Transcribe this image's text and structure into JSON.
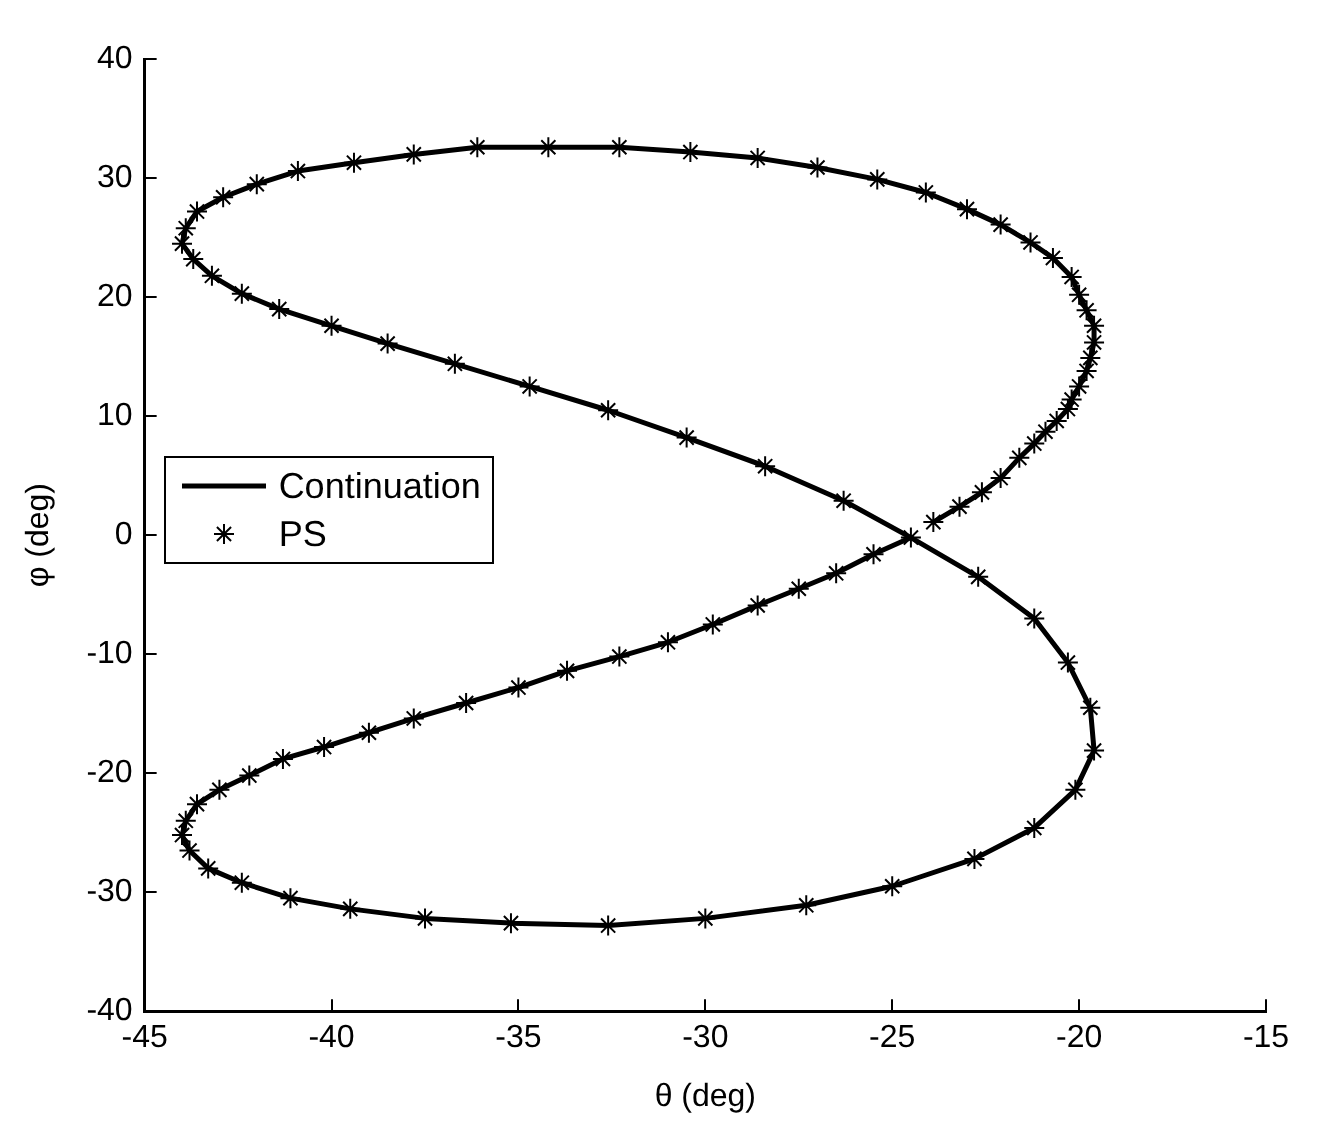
{
  "chart_data": {
    "type": "line",
    "xlabel": "θ (deg)",
    "ylabel": "φ (deg)",
    "xlim": [
      -45,
      -15
    ],
    "xticks": [
      -45,
      -40,
      -35,
      -30,
      -25,
      -20,
      -15
    ],
    "ylim": [
      -40,
      40
    ],
    "yticks": [
      -40,
      -30,
      -20,
      -10,
      0,
      10,
      20,
      30,
      40
    ],
    "grid": false,
    "legend": "left",
    "series": [
      {
        "name": "Continuation",
        "color": "#000000",
        "marker": "none",
        "line_style": "solid",
        "x": [
          -23.9,
          -23.2,
          -22.6,
          -22.1,
          -21.6,
          -21.2,
          -20.9,
          -20.6,
          -20.3,
          -20.2,
          -20.0,
          -19.8,
          -19.7,
          -19.6,
          -19.6,
          -19.8,
          -20.0,
          -20.2,
          -20.7,
          -21.3,
          -22.1,
          -23.0,
          -24.1,
          -25.4,
          -27.0,
          -28.6,
          -30.4,
          -32.3,
          -34.2,
          -36.1,
          -37.8,
          -39.4,
          -40.9,
          -42.0,
          -42.9,
          -43.6,
          -43.9,
          -44.0,
          -43.7,
          -43.2,
          -42.4,
          -41.4,
          -40.0,
          -38.5,
          -36.7,
          -34.7,
          -32.6,
          -30.5,
          -28.4,
          -26.3,
          -24.5,
          -22.7,
          -21.2,
          -20.3,
          -19.7,
          -19.6,
          -20.1,
          -21.2,
          -22.8,
          -25.0,
          -27.3,
          -30.0,
          -32.6,
          -35.2,
          -37.5,
          -39.5,
          -41.1,
          -42.4,
          -43.3,
          -43.8,
          -44.0,
          -43.9,
          -43.6,
          -43.0,
          -42.2,
          -41.3,
          -40.2,
          -39.0,
          -37.8,
          -36.4,
          -35.0,
          -33.7,
          -32.3,
          -31.0,
          -29.8,
          -28.6,
          -27.5,
          -26.5,
          -25.5,
          -24.5
        ],
        "values": [
          1.1,
          2.4,
          3.6,
          4.8,
          6.5,
          7.7,
          8.7,
          9.6,
          10.6,
          11.4,
          12.5,
          13.8,
          14.9,
          16.2,
          17.6,
          18.9,
          20.2,
          21.7,
          23.3,
          24.6,
          26.1,
          27.4,
          28.8,
          29.9,
          30.9,
          31.7,
          32.2,
          32.6,
          32.6,
          32.6,
          32.0,
          31.3,
          30.6,
          29.5,
          28.4,
          27.2,
          25.8,
          24.5,
          23.2,
          21.8,
          20.3,
          19.0,
          17.6,
          16.1,
          14.4,
          12.5,
          10.5,
          8.2,
          5.8,
          2.9,
          -0.2,
          -3.5,
          -7.0,
          -10.7,
          -14.5,
          -18.1,
          -21.4,
          -24.6,
          -27.2,
          -29.5,
          -31.1,
          -32.2,
          -32.8,
          -32.6,
          -32.2,
          -31.4,
          -30.5,
          -29.2,
          -28.0,
          -26.5,
          -25.2,
          -24.0,
          -22.6,
          -21.4,
          -20.2,
          -18.8,
          -17.8,
          -16.6,
          -15.4,
          -14.1,
          -12.8,
          -11.4,
          -10.2,
          -9.0,
          -7.5,
          -5.9,
          -4.5,
          -3.2,
          -1.6,
          -0.2
        ]
      },
      {
        "name": "PS",
        "type": "scatter",
        "color": "#000000",
        "marker": "cross",
        "x": [
          -24.5,
          -23.9,
          -23.2,
          -22.6,
          -22.1,
          -21.6,
          -21.2,
          -20.9,
          -20.6,
          -20.3,
          -20.2,
          -20.0,
          -19.8,
          -19.7,
          -19.6,
          -19.6,
          -19.8,
          -20.0,
          -20.2,
          -20.7,
          -21.3,
          -22.1,
          -23.0,
          -24.1,
          -25.4,
          -27.0,
          -28.6,
          -30.4,
          -32.3,
          -34.2,
          -36.1,
          -37.8,
          -39.4,
          -40.9,
          -42.0,
          -42.9,
          -43.6,
          -43.9,
          -44.0,
          -43.7,
          -43.2,
          -42.4,
          -41.4,
          -40.0,
          -38.5,
          -36.7,
          -34.7,
          -32.6,
          -30.5,
          -28.4,
          -26.3,
          -22.7,
          -21.2,
          -20.3,
          -19.7,
          -19.6,
          -20.1,
          -21.2,
          -22.8,
          -25.0,
          -27.3,
          -30.0,
          -32.6,
          -35.2,
          -37.5,
          -39.5,
          -41.1,
          -42.4,
          -43.3,
          -43.8,
          -44.0,
          -43.9,
          -43.6,
          -43.0,
          -42.2,
          -41.3,
          -40.2,
          -39.0,
          -37.8,
          -36.4,
          -35.0,
          -33.7,
          -32.3,
          -31.0,
          -29.8,
          -28.6,
          -27.5,
          -26.5,
          -25.5
        ],
        "values": [
          -0.2,
          1.1,
          2.4,
          3.6,
          4.8,
          6.5,
          7.7,
          8.7,
          9.6,
          10.6,
          11.4,
          12.5,
          13.8,
          14.9,
          16.2,
          17.6,
          18.9,
          20.2,
          21.7,
          23.3,
          24.6,
          26.1,
          27.4,
          28.8,
          29.9,
          30.9,
          31.7,
          32.2,
          32.6,
          32.6,
          32.6,
          32.0,
          31.3,
          30.6,
          29.5,
          28.4,
          27.2,
          25.8,
          24.5,
          23.2,
          21.8,
          20.3,
          19.0,
          17.6,
          16.1,
          14.4,
          12.5,
          10.5,
          8.2,
          5.8,
          2.9,
          -3.5,
          -7.0,
          -10.7,
          -14.5,
          -18.1,
          -21.4,
          -24.6,
          -27.2,
          -29.5,
          -31.1,
          -32.2,
          -32.8,
          -32.6,
          -32.2,
          -31.4,
          -30.5,
          -29.2,
          -28.0,
          -26.5,
          -25.2,
          -24.0,
          -22.6,
          -21.4,
          -20.2,
          -18.8,
          -17.8,
          -16.6,
          -15.4,
          -14.1,
          -12.8,
          -11.4,
          -10.2,
          -9.0,
          -7.5,
          -5.9,
          -4.5,
          -3.2,
          -1.6
        ]
      }
    ]
  }
}
